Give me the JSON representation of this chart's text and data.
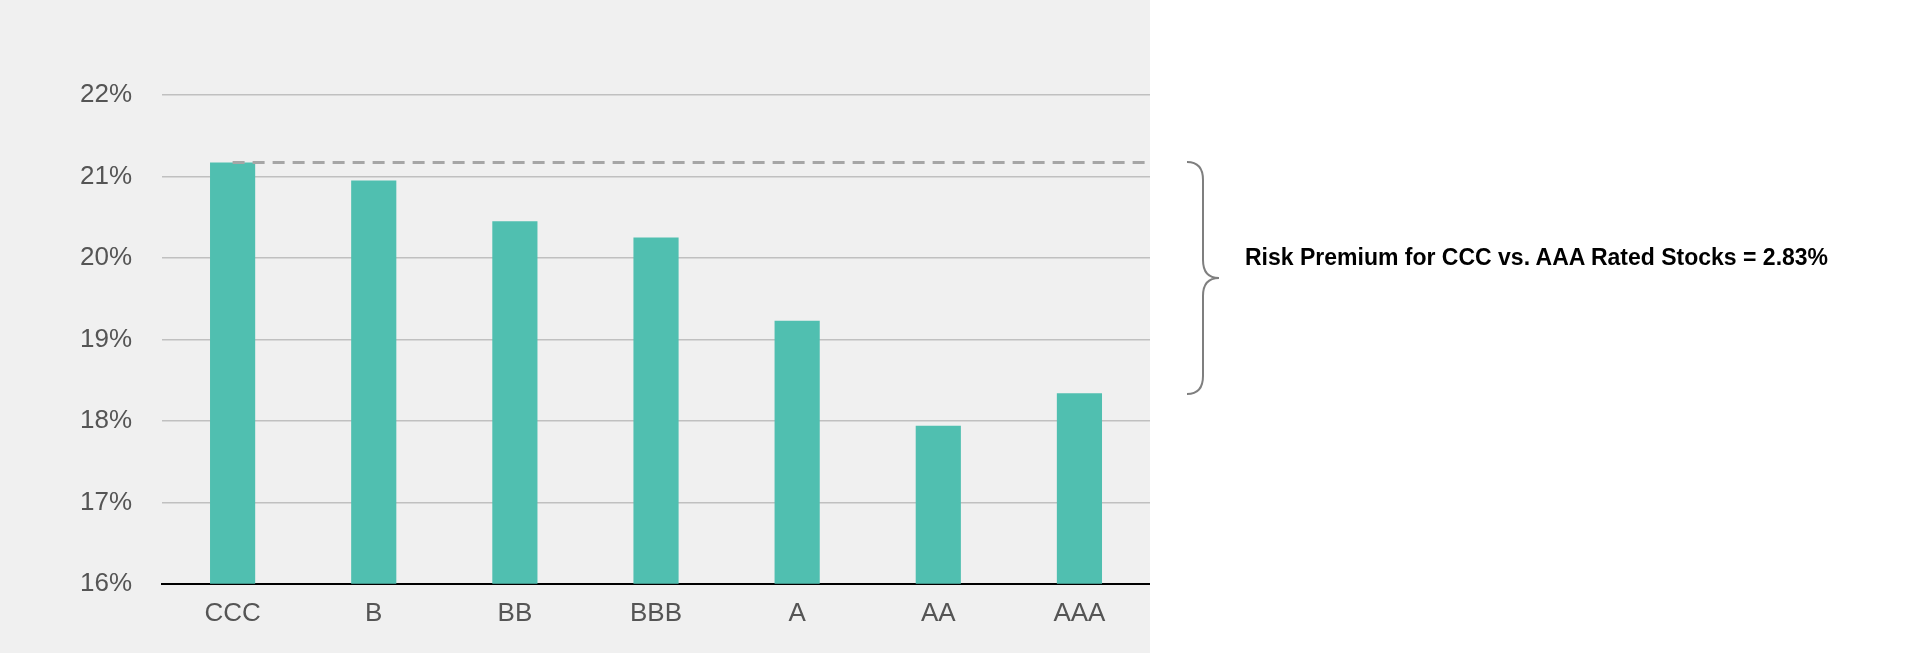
{
  "chart_data": {
    "type": "bar",
    "categories": [
      "CCC",
      "B",
      "BB",
      "BBB",
      "A",
      "AA",
      "AAA"
    ],
    "values": [
      21.17,
      20.95,
      20.45,
      20.25,
      19.23,
      17.94,
      18.34
    ],
    "color": "#50bfb0",
    "ylim": [
      16,
      22
    ],
    "yticks": [
      {
        "value": 16,
        "label": "16%"
      },
      {
        "value": 17,
        "label": "17%"
      },
      {
        "value": 18,
        "label": "18%"
      },
      {
        "value": 19,
        "label": "19%"
      },
      {
        "value": 20,
        "label": "20%"
      },
      {
        "value": 21,
        "label": "21%"
      },
      {
        "value": 22,
        "label": "22%"
      }
    ],
    "grid": "y",
    "legend": false,
    "ref_lines": [
      {
        "axis": "y",
        "value": 21.17,
        "color": "#a6a6a6",
        "line_style": "dashed"
      }
    ],
    "annotations": [
      "Risk Premium for CCC vs. AAA Rated Stocks = 2.83%"
    ]
  }
}
